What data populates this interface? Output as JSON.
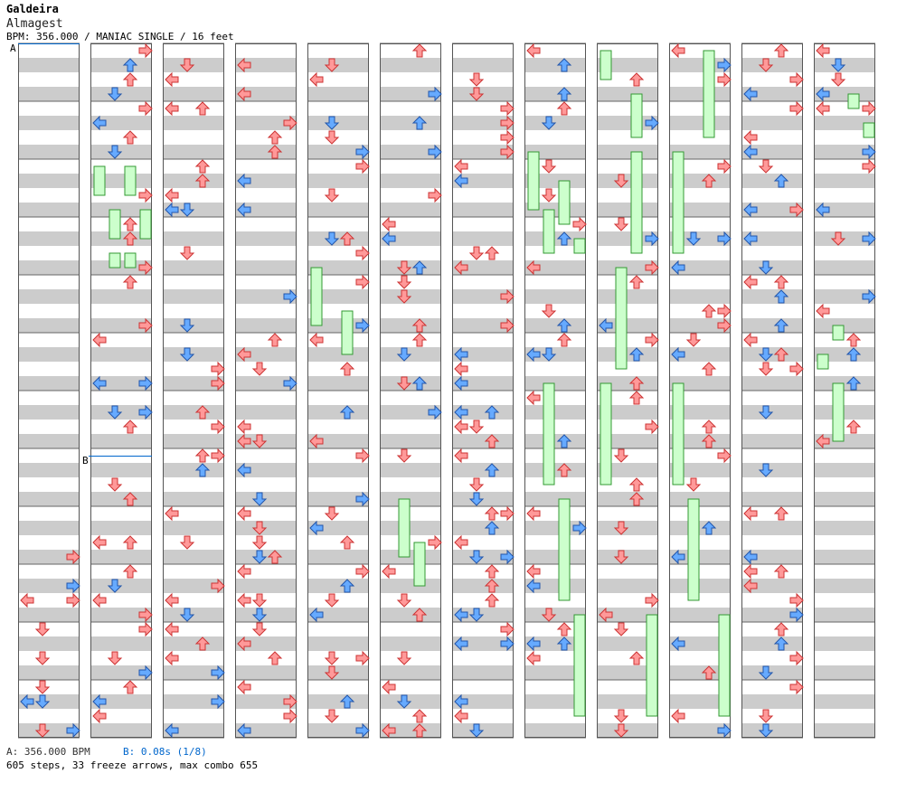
{
  "header": {
    "artist": "Galdeira",
    "song": "Almagest",
    "info": "BPM: 356.000 / MANIAC SINGLE / 16 feet"
  },
  "markers": {
    "a": "A",
    "b": "B"
  },
  "footer": {
    "bpm_a": "A: 356.000 BPM",
    "bpm_b": "B: 0.08s (1/8)",
    "stats": "605 steps, 33 freeze arrows, max combo 655"
  },
  "colors": {
    "red_arrow": "#ff9999",
    "blue_arrow": "#66aaff",
    "freeze": "#ccffcc",
    "stripe": "#cccccc",
    "marker_a": "#000000",
    "marker_b": "#0066cc"
  },
  "icons": [
    "left-arrow-icon",
    "down-arrow-icon",
    "up-arrow-icon",
    "right-arrow-icon",
    "freeze-arrow-icon"
  ]
}
